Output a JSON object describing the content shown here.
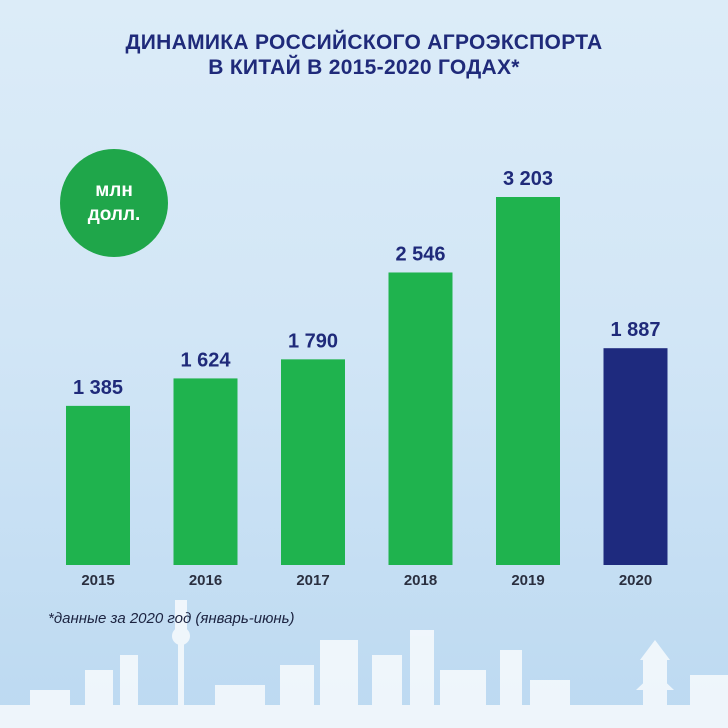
{
  "title": {
    "line1": "ДИНАМИКА РОССИЙСКОГО АГРОЭКСПОРТА",
    "line2": "В КИТАЙ В 2015-2020 ГОДАХ*"
  },
  "unit_badge": {
    "line1": "млн",
    "line2": "долл."
  },
  "footnote": "*данные за 2020 год (январь-июнь)",
  "colors": {
    "title": "#1f2a7a",
    "bar_green": "#1fb34e",
    "bar_navy": "#1e2a7e",
    "badge": "#1fa64a",
    "value_label": "#1f2a7a",
    "year_label": "#2a2f3f"
  },
  "chart_data": {
    "type": "bar",
    "categories": [
      "2015",
      "2016",
      "2017",
      "2018",
      "2019",
      "2020"
    ],
    "values": [
      1385,
      1624,
      1790,
      2546,
      3203,
      1887
    ],
    "value_labels": [
      "1 385",
      "1 624",
      "1 790",
      "2 546",
      "3 203",
      "1 887"
    ],
    "bar_colors": [
      "#1fb34e",
      "#1fb34e",
      "#1fb34e",
      "#1fb34e",
      "#1fb34e",
      "#1e2a7e"
    ],
    "ylim": [
      0,
      3203
    ],
    "grid": false,
    "legend": "none"
  }
}
